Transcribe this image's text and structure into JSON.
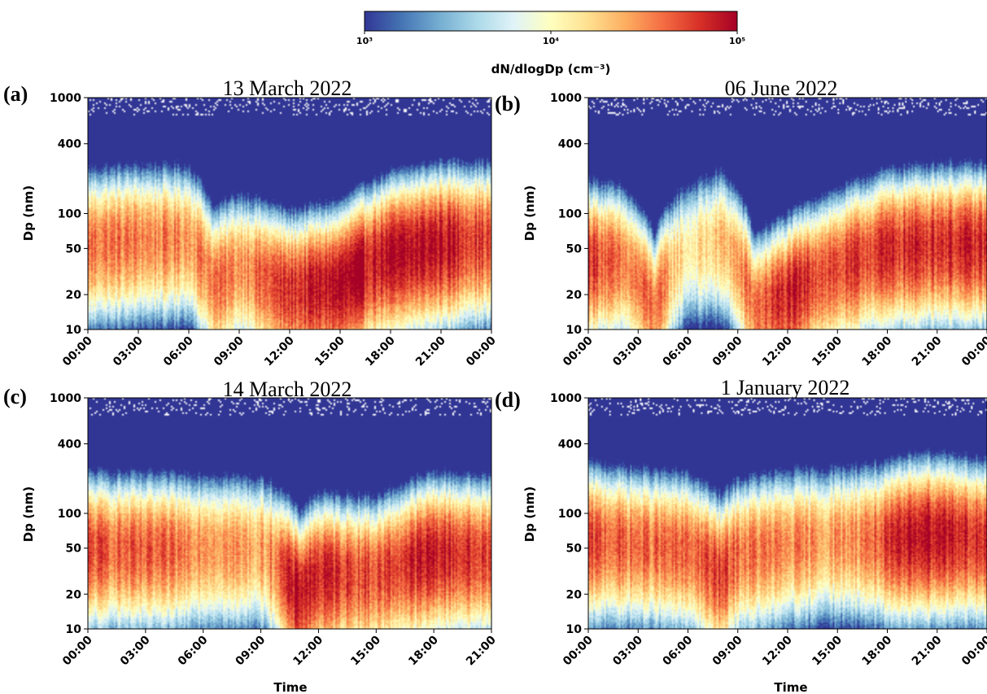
{
  "colorbar": {
    "label": "dN/dlogDp (cm⁻³)",
    "ticks": [
      "10³",
      "10⁴",
      "10⁵"
    ],
    "tick_values": [
      1000,
      10000,
      100000
    ],
    "scale": "log",
    "colormap": "RdYlBu_r",
    "stops": [
      "#313695",
      "#4575b4",
      "#74add1",
      "#abd9e9",
      "#e0f3f8",
      "#ffffbf",
      "#fee090",
      "#fdae61",
      "#f46d43",
      "#d73027",
      "#a50026"
    ]
  },
  "chart_data": [
    {
      "type": "heatmap",
      "panel": "(a)",
      "title": "13 March 2022",
      "xlabel": "",
      "ylabel": "Dp (nm)",
      "yscale": "log",
      "ylim": [
        10,
        1000
      ],
      "yticks": [
        "1000",
        "400",
        "100",
        "50",
        "20",
        "10"
      ],
      "ytick_values": [
        1000,
        400,
        100,
        50,
        20,
        10
      ],
      "xticks": [
        "00:00",
        "03:00",
        "06:00",
        "09:00",
        "12:00",
        "15:00",
        "18:00",
        "21:00",
        "00:00"
      ],
      "x_hours": [
        0,
        3,
        6,
        9,
        12,
        15,
        18,
        21,
        24
      ],
      "xlim_hours": [
        0,
        24
      ],
      "mode_diameter_nm": [
        [
          0,
          55
        ],
        [
          3,
          60
        ],
        [
          6,
          60
        ],
        [
          7.5,
          25
        ],
        [
          9,
          35
        ],
        [
          12,
          22
        ],
        [
          15,
          25
        ],
        [
          18,
          45
        ],
        [
          21,
          55
        ],
        [
          24,
          60
        ]
      ],
      "peak_log10_dNdlogDp": [
        [
          0,
          4.6
        ],
        [
          3,
          4.55
        ],
        [
          6,
          4.5
        ],
        [
          7.5,
          4.6
        ],
        [
          9,
          4.5
        ],
        [
          12,
          4.8
        ],
        [
          15,
          4.95
        ],
        [
          18,
          4.9
        ],
        [
          21,
          4.95
        ],
        [
          24,
          4.7
        ]
      ]
    },
    {
      "type": "heatmap",
      "panel": "(b)",
      "title": "06 June 2022",
      "xlabel": "",
      "ylabel": "Dp (nm)",
      "yscale": "log",
      "ylim": [
        10,
        1000
      ],
      "yticks": [
        "1000",
        "400",
        "100",
        "50",
        "20",
        "10"
      ],
      "ytick_values": [
        1000,
        400,
        100,
        50,
        20,
        10
      ],
      "xticks": [
        "00:00",
        "03:00",
        "06:00",
        "09:00",
        "12:00",
        "15:00",
        "18:00",
        "21:00",
        "00:00"
      ],
      "x_hours": [
        0,
        3,
        6,
        9,
        12,
        15,
        18,
        21,
        24
      ],
      "xlim_hours": [
        0,
        24
      ],
      "mode_diameter_nm": [
        [
          0,
          40
        ],
        [
          2,
          40
        ],
        [
          4,
          15
        ],
        [
          6,
          50
        ],
        [
          8,
          60
        ],
        [
          10,
          15
        ],
        [
          12,
          20
        ],
        [
          15,
          35
        ],
        [
          18,
          50
        ],
        [
          21,
          55
        ],
        [
          24,
          55
        ]
      ],
      "peak_log10_dNdlogDp": [
        [
          0,
          4.85
        ],
        [
          2,
          4.5
        ],
        [
          4,
          4.6
        ],
        [
          6,
          4.1
        ],
        [
          8,
          4.3
        ],
        [
          10,
          4.6
        ],
        [
          12,
          4.85
        ],
        [
          15,
          4.7
        ],
        [
          18,
          4.8
        ],
        [
          21,
          4.85
        ],
        [
          24,
          4.8
        ]
      ]
    },
    {
      "type": "heatmap",
      "panel": "(c)",
      "title": "14 March 2022",
      "xlabel": "Time",
      "ylabel": "Dp (nm)",
      "yscale": "log",
      "ylim": [
        10,
        1000
      ],
      "yticks": [
        "1000",
        "400",
        "100",
        "50",
        "20",
        "10"
      ],
      "ytick_values": [
        1000,
        400,
        100,
        50,
        20,
        10
      ],
      "xticks": [
        "00:00",
        "03:00",
        "06:00",
        "09:00",
        "12:00",
        "15:00",
        "18:00",
        "21:00"
      ],
      "x_hours": [
        0,
        3,
        6,
        9,
        12,
        15,
        18,
        21
      ],
      "xlim_hours": [
        0,
        21
      ],
      "mode_diameter_nm": [
        [
          0,
          50
        ],
        [
          3,
          50
        ],
        [
          6,
          50
        ],
        [
          9,
          50
        ],
        [
          11,
          20
        ],
        [
          12,
          30
        ],
        [
          15,
          30
        ],
        [
          18,
          45
        ],
        [
          21,
          45
        ]
      ],
      "peak_log10_dNdlogDp": [
        [
          0,
          4.7
        ],
        [
          3,
          4.6
        ],
        [
          6,
          4.55
        ],
        [
          9,
          4.4
        ],
        [
          11,
          4.95
        ],
        [
          12,
          4.85
        ],
        [
          15,
          4.7
        ],
        [
          18,
          4.9
        ],
        [
          21,
          4.7
        ]
      ]
    },
    {
      "type": "heatmap",
      "panel": "(d)",
      "title": "1 January 2022",
      "xlabel": "Time",
      "ylabel": "Dp (nm)",
      "yscale": "log",
      "ylim": [
        10,
        1000
      ],
      "yticks": [
        "1000",
        "400",
        "100",
        "50",
        "20",
        "10"
      ],
      "ytick_values": [
        1000,
        400,
        100,
        50,
        20,
        10
      ],
      "xticks": [
        "00:00",
        "03:00",
        "06:00",
        "09:00",
        "12:00",
        "15:00",
        "18:00",
        "21:00",
        "00:00"
      ],
      "x_hours": [
        0,
        3,
        6,
        9,
        12,
        15,
        18,
        21,
        24
      ],
      "xlim_hours": [
        0,
        24
      ],
      "mode_diameter_nm": [
        [
          0,
          60
        ],
        [
          3,
          55
        ],
        [
          6,
          50
        ],
        [
          8,
          30
        ],
        [
          9,
          45
        ],
        [
          12,
          55
        ],
        [
          15,
          60
        ],
        [
          18,
          60
        ],
        [
          20,
          65
        ],
        [
          22,
          65
        ],
        [
          24,
          60
        ]
      ],
      "peak_log10_dNdlogDp": [
        [
          0,
          4.7
        ],
        [
          3,
          4.6
        ],
        [
          6,
          4.6
        ],
        [
          8,
          4.75
        ],
        [
          9,
          4.6
        ],
        [
          12,
          4.5
        ],
        [
          15,
          4.45
        ],
        [
          18,
          4.7
        ],
        [
          20,
          5.0
        ],
        [
          22,
          4.9
        ],
        [
          24,
          4.75
        ]
      ]
    }
  ]
}
